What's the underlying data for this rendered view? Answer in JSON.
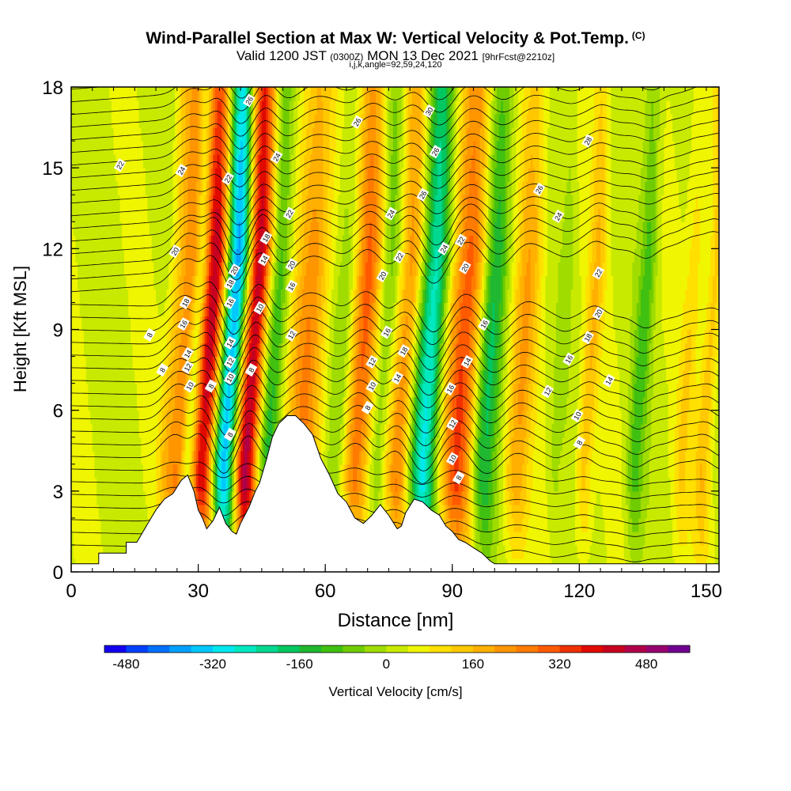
{
  "chart_data": {
    "type": "heatmap",
    "title": "Wind-Parallel Section at Max W: Vertical Velocity & Pot.Temp.",
    "title_tag": "(C)",
    "subtitle_main": "Valid 1200 JST",
    "subtitle_utc": "(0300Z)",
    "subtitle_date": "MON 13 Dec 2021",
    "subtitle_fcst": "[9hrFcst@2210z]",
    "subtitle2": "i,j,k,angle=92,59,24,120",
    "xlabel": "Distance [nm]",
    "ylabel": "Height [Kft MSL]",
    "xlim": [
      0,
      153
    ],
    "ylim": [
      0,
      18
    ],
    "xticks": [
      "0",
      "30",
      "60",
      "90",
      "120",
      "150"
    ],
    "yticks": [
      "0",
      "3",
      "6",
      "9",
      "12",
      "15",
      "18"
    ],
    "colorbar": {
      "label": "Vertical Velocity [cm/s]",
      "range": [
        -520,
        560
      ],
      "tick_values": [
        -480,
        -320,
        -160,
        0,
        160,
        320,
        480
      ],
      "tick_labels": [
        "-480",
        "-320",
        "-160",
        "0",
        "160",
        "320",
        "480"
      ],
      "colors": [
        "#1400f0",
        "#0040ff",
        "#0070ff",
        "#00a0ff",
        "#00c8ff",
        "#00e8ee",
        "#00e8c0",
        "#00d890",
        "#00c860",
        "#20b830",
        "#40c010",
        "#70cc00",
        "#a0dc00",
        "#c8ea00",
        "#f0f500",
        "#ffe000",
        "#ffc800",
        "#ffb000",
        "#ff9600",
        "#ff7c00",
        "#ff5a00",
        "#f03000",
        "#e00a00",
        "#c80020",
        "#b0004a",
        "#980070",
        "#700090"
      ]
    },
    "vertical_velocity_bands": [
      {
        "x": 18,
        "w": 2,
        "value": 0
      },
      {
        "x": 22,
        "w": 2,
        "value": 80
      },
      {
        "x": 25,
        "w": 2.5,
        "value": 200
      },
      {
        "x": 27.5,
        "w": 1.5,
        "value": -120
      },
      {
        "x": 31,
        "w": 3,
        "value": 400
      },
      {
        "x": 36,
        "w": 3,
        "value": -440
      },
      {
        "x": 41,
        "w": 3,
        "value": 440
      },
      {
        "x": 46,
        "w": 2.5,
        "value": -160
      },
      {
        "x": 54,
        "w": 4,
        "value": 200
      },
      {
        "x": 62,
        "w": 2.5,
        "value": -60
      },
      {
        "x": 67,
        "w": 3,
        "value": 240
      },
      {
        "x": 72,
        "w": 2,
        "value": -80
      },
      {
        "x": 77,
        "w": 2.5,
        "value": 200
      },
      {
        "x": 83,
        "w": 3,
        "value": -300
      },
      {
        "x": 91,
        "w": 4,
        "value": 280
      },
      {
        "x": 97,
        "w": 3,
        "value": -200
      },
      {
        "x": 105,
        "w": 3,
        "value": 160
      },
      {
        "x": 114,
        "w": 1.5,
        "value": -40
      },
      {
        "x": 121,
        "w": 2,
        "value": 120
      },
      {
        "x": 133,
        "w": 2,
        "value": -120
      },
      {
        "x": 144,
        "w": 2,
        "value": 80
      },
      {
        "x": 149,
        "w": 2,
        "value": 120
      }
    ],
    "terrain": [
      [
        0,
        0.3
      ],
      [
        6.5,
        0.3
      ],
      [
        6.5,
        0.7
      ],
      [
        13,
        0.7
      ],
      [
        13,
        1.1
      ],
      [
        15.5,
        1.1
      ],
      [
        17,
        1.5
      ],
      [
        18.5,
        1.9
      ],
      [
        20,
        2.3
      ],
      [
        22,
        2.7
      ],
      [
        24,
        2.9
      ],
      [
        26,
        3.4
      ],
      [
        27.5,
        3.6
      ],
      [
        29,
        3.0
      ],
      [
        30,
        2.3
      ],
      [
        31,
        2.0
      ],
      [
        32,
        1.6
      ],
      [
        33.5,
        1.9
      ],
      [
        35,
        2.4
      ],
      [
        36.5,
        1.8
      ],
      [
        38,
        1.5
      ],
      [
        39,
        1.4
      ],
      [
        40,
        1.8
      ],
      [
        42,
        2.4
      ],
      [
        43.5,
        3.0
      ],
      [
        44.5,
        3.3
      ],
      [
        46,
        4.1
      ],
      [
        47.5,
        5.0
      ],
      [
        49,
        5.5
      ],
      [
        51,
        5.8
      ],
      [
        53,
        5.8
      ],
      [
        55,
        5.5
      ],
      [
        57,
        5.1
      ],
      [
        59,
        4.2
      ],
      [
        61,
        3.6
      ],
      [
        63,
        2.9
      ],
      [
        65,
        2.6
      ],
      [
        67,
        2.0
      ],
      [
        69,
        1.8
      ],
      [
        71,
        2.1
      ],
      [
        73,
        2.5
      ],
      [
        75,
        2.1
      ],
      [
        77,
        1.6
      ],
      [
        78,
        1.7
      ],
      [
        79,
        2.2
      ],
      [
        81,
        2.7
      ],
      [
        83,
        2.6
      ],
      [
        85,
        2.3
      ],
      [
        87,
        2.1
      ],
      [
        88.5,
        1.7
      ],
      [
        90,
        1.5
      ],
      [
        91.5,
        1.2
      ],
      [
        93,
        1.1
      ],
      [
        95,
        0.9
      ],
      [
        97,
        0.7
      ],
      [
        99,
        0.4
      ],
      [
        100,
        0.3
      ],
      [
        153,
        0.3
      ]
    ],
    "contour_labels": [
      {
        "x": 11.5,
        "y": 15.1,
        "t": "22"
      },
      {
        "x": 26,
        "y": 14.9,
        "t": "24"
      },
      {
        "x": 24.5,
        "y": 11.9,
        "t": "20"
      },
      {
        "x": 27,
        "y": 10.0,
        "t": "18"
      },
      {
        "x": 26.5,
        "y": 9.2,
        "t": "16"
      },
      {
        "x": 18.5,
        "y": 8.8,
        "t": "8"
      },
      {
        "x": 21.5,
        "y": 7.5,
        "t": "8"
      },
      {
        "x": 27.5,
        "y": 8.1,
        "t": "14"
      },
      {
        "x": 27.5,
        "y": 7.6,
        "t": "12"
      },
      {
        "x": 28,
        "y": 6.9,
        "t": "10"
      },
      {
        "x": 33,
        "y": 6.9,
        "t": "8"
      },
      {
        "x": 37,
        "y": 14.6,
        "t": "22"
      },
      {
        "x": 42,
        "y": 17.5,
        "t": "26"
      },
      {
        "x": 38.5,
        "y": 11.2,
        "t": "20"
      },
      {
        "x": 37.5,
        "y": 10.7,
        "t": "18"
      },
      {
        "x": 37.5,
        "y": 10.0,
        "t": "16"
      },
      {
        "x": 37.5,
        "y": 8.5,
        "t": "14"
      },
      {
        "x": 37.5,
        "y": 7.8,
        "t": "12"
      },
      {
        "x": 37.5,
        "y": 7.2,
        "t": "10"
      },
      {
        "x": 37.5,
        "y": 5.1,
        "t": "8"
      },
      {
        "x": 42.5,
        "y": 7.5,
        "t": "8"
      },
      {
        "x": 44.5,
        "y": 9.8,
        "t": "10"
      },
      {
        "x": 45.5,
        "y": 11.6,
        "t": "14"
      },
      {
        "x": 46,
        "y": 12.4,
        "t": "18"
      },
      {
        "x": 48.5,
        "y": 15.4,
        "t": "24"
      },
      {
        "x": 51.5,
        "y": 13.3,
        "t": "22"
      },
      {
        "x": 52,
        "y": 11.4,
        "t": "20"
      },
      {
        "x": 52,
        "y": 10.6,
        "t": "16"
      },
      {
        "x": 52,
        "y": 8.8,
        "t": "12"
      },
      {
        "x": 67.5,
        "y": 16.7,
        "t": "26"
      },
      {
        "x": 75.5,
        "y": 13.3,
        "t": "24"
      },
      {
        "x": 77.5,
        "y": 11.7,
        "t": "22"
      },
      {
        "x": 73.5,
        "y": 11.0,
        "t": "20"
      },
      {
        "x": 74.5,
        "y": 8.9,
        "t": "16"
      },
      {
        "x": 78.5,
        "y": 8.2,
        "t": "18"
      },
      {
        "x": 71,
        "y": 7.8,
        "t": "12"
      },
      {
        "x": 77,
        "y": 7.2,
        "t": "14"
      },
      {
        "x": 71,
        "y": 6.9,
        "t": "10"
      },
      {
        "x": 70,
        "y": 6.1,
        "t": "8"
      },
      {
        "x": 84.5,
        "y": 17.1,
        "t": "30"
      },
      {
        "x": 86,
        "y": 15.6,
        "t": "26"
      },
      {
        "x": 83,
        "y": 14.0,
        "t": "26"
      },
      {
        "x": 88,
        "y": 12.0,
        "t": "24"
      },
      {
        "x": 92,
        "y": 12.3,
        "t": "22"
      },
      {
        "x": 93,
        "y": 11.3,
        "t": "20"
      },
      {
        "x": 97.5,
        "y": 9.2,
        "t": "16"
      },
      {
        "x": 93.5,
        "y": 7.8,
        "t": "14"
      },
      {
        "x": 89.5,
        "y": 6.8,
        "t": "16"
      },
      {
        "x": 90,
        "y": 5.5,
        "t": "12"
      },
      {
        "x": 90,
        "y": 4.2,
        "t": "10"
      },
      {
        "x": 91.5,
        "y": 3.5,
        "t": "8"
      },
      {
        "x": 122,
        "y": 16.0,
        "t": "28"
      },
      {
        "x": 110.5,
        "y": 14.2,
        "t": "26"
      },
      {
        "x": 115,
        "y": 13.2,
        "t": "24"
      },
      {
        "x": 124.5,
        "y": 11.1,
        "t": "22"
      },
      {
        "x": 124.5,
        "y": 9.6,
        "t": "20"
      },
      {
        "x": 122,
        "y": 8.7,
        "t": "18"
      },
      {
        "x": 117.5,
        "y": 7.9,
        "t": "16"
      },
      {
        "x": 127,
        "y": 7.1,
        "t": "14"
      },
      {
        "x": 112.5,
        "y": 6.7,
        "t": "12"
      },
      {
        "x": 119.5,
        "y": 5.8,
        "t": "10"
      },
      {
        "x": 120,
        "y": 4.8,
        "t": "8"
      }
    ]
  }
}
